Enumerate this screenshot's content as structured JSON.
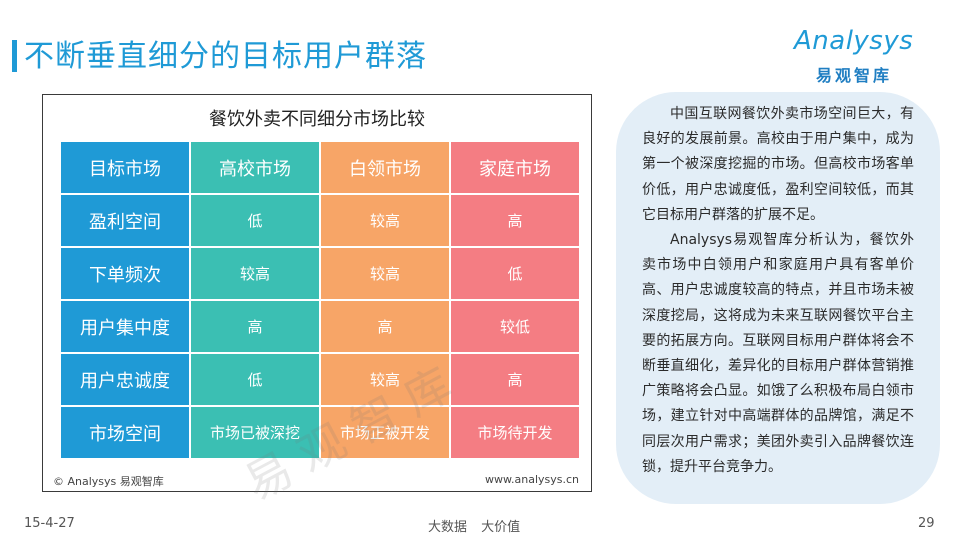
{
  "page": {
    "title": "不断垂直细分的目标用户群落",
    "date": "15-4-27",
    "slogan": "大数据   大价值",
    "page_number": "29"
  },
  "logo": {
    "wordmark": "Analysys",
    "subtitle": "易观智库"
  },
  "table": {
    "title": "餐饮外卖不同细分市场比较",
    "header": [
      "目标市场",
      "高校市场",
      "白领市场",
      "家庭市场"
    ],
    "rows": [
      [
        "盈利空间",
        "低",
        "较高",
        "高"
      ],
      [
        "下单频次",
        "较高",
        "较高",
        "低"
      ],
      [
        "用户集中度",
        "高",
        "高",
        "较低"
      ],
      [
        "用户忠诚度",
        "低",
        "较高",
        "高"
      ],
      [
        "市场空间",
        "市场已被深挖",
        "市场正被开发",
        "市场待开发"
      ]
    ],
    "watermark": "易观智库",
    "footer_left": "© Analysys 易观智库",
    "footer_right": "www.analysys.cn",
    "colors": {
      "label": "#1f9ad6",
      "campus": "#3bbfb3",
      "office": "#f7a567",
      "family": "#f47d83"
    }
  },
  "note": {
    "paragraph1": "中国互联网餐饮外卖市场空间巨大，有良好的发展前景。高校由于用户集中，成为第一个被深度挖掘的市场。但高校市场客单价低，用户忠诚度低，盈利空间较低，而其它目标用户群落的扩展不足。",
    "paragraph2": "Analysys易观智库分析认为，餐饮外卖市场中白领用户和家庭用户具有客单价高、用户忠诚度较高的特点，并且市场未被深度挖局，这将成为未来互联网餐饮平台主要的拓展方向。互联网目标用户群体将会不断垂直细化，差异化的目标用户群体营销推广策略将会凸显。如饿了么积极布局白领市场，建立针对中高端群体的品牌馆，满足不同层次用户需求；美团外卖引入品牌餐饮连锁，提升平台竞争力。"
  }
}
